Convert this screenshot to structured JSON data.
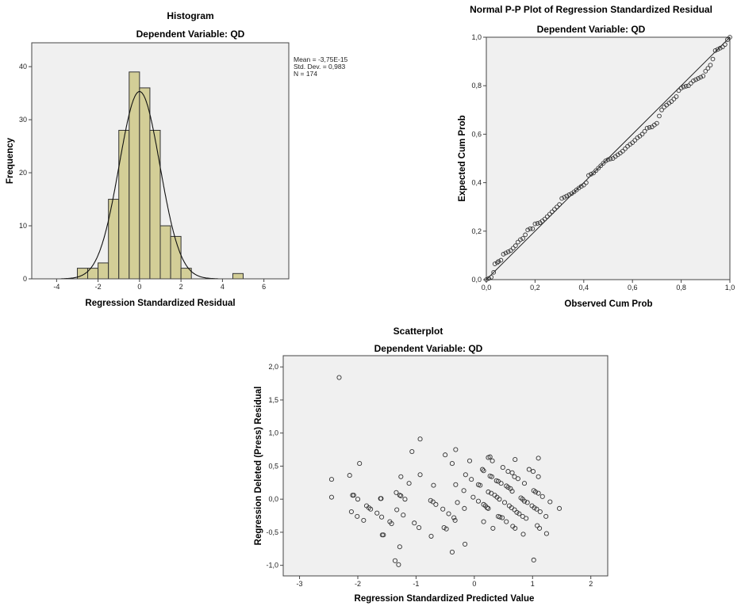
{
  "chart_data": [
    {
      "type": "bar",
      "title": "Histogram",
      "subtitle": "Dependent Variable: QD",
      "xlabel": "Regression Standardized Residual",
      "ylabel": "Frequency",
      "xlim": [
        -5.2,
        7.2
      ],
      "ylim": [
        0,
        44.5
      ],
      "xticks": [
        -4,
        -2,
        0,
        2,
        4,
        6
      ],
      "xtick_labels": [
        "-4",
        "-2",
        "0",
        "2",
        "4",
        "6"
      ],
      "yticks": [
        0,
        10,
        20,
        30,
        40
      ],
      "ytick_labels": [
        "0",
        "10",
        "20",
        "30",
        "40"
      ],
      "bin_width": 0.5,
      "bins": [
        {
          "start": -3.0,
          "count": 2
        },
        {
          "start": -2.5,
          "count": 2
        },
        {
          "start": -2.0,
          "count": 3
        },
        {
          "start": -1.5,
          "count": 15
        },
        {
          "start": -1.0,
          "count": 28
        },
        {
          "start": -0.5,
          "count": 39
        },
        {
          "start": 0.0,
          "count": 36
        },
        {
          "start": 0.5,
          "count": 28
        },
        {
          "start": 1.0,
          "count": 10
        },
        {
          "start": 1.5,
          "count": 8
        },
        {
          "start": 2.0,
          "count": 2
        },
        {
          "start": 4.5,
          "count": 1
        }
      ],
      "bar_color": "#d3ce97",
      "normal_curve": {
        "mean": 0,
        "sd": 0.983,
        "n": 174
      },
      "stats": [
        "Mean = -3,75E-15",
        "Std. Dev. = 0,983",
        "N = 174"
      ]
    },
    {
      "type": "scatter",
      "title": "Normal P-P Plot of Regression Standardized Residual",
      "subtitle": "Dependent Variable: QD",
      "xlabel": "Observed Cum Prob",
      "ylabel": "Expected Cum Prob",
      "xlim": [
        0,
        1
      ],
      "ylim": [
        0,
        1
      ],
      "xticks": [
        0,
        0.2,
        0.4,
        0.6,
        0.8,
        1.0
      ],
      "xtick_labels": [
        "0,0",
        "0,2",
        "0,4",
        "0,6",
        "0,8",
        "1,0"
      ],
      "yticks": [
        0,
        0.2,
        0.4,
        0.6,
        0.8,
        1.0
      ],
      "ytick_labels": [
        "0,0",
        "0,2",
        "0,4",
        "0,6",
        "0,8",
        "1,0"
      ],
      "reference_line": [
        [
          0,
          0
        ],
        [
          1,
          1
        ]
      ],
      "points": [
        [
          0,
          0
        ],
        [
          0.01,
          0.005
        ],
        [
          0.02,
          0.01
        ],
        [
          0.03,
          0.03
        ],
        [
          0.035,
          0.065
        ],
        [
          0.045,
          0.07
        ],
        [
          0.05,
          0.075
        ],
        [
          0.06,
          0.08
        ],
        [
          0.07,
          0.105
        ],
        [
          0.08,
          0.11
        ],
        [
          0.09,
          0.115
        ],
        [
          0.1,
          0.12
        ],
        [
          0.11,
          0.13
        ],
        [
          0.12,
          0.14
        ],
        [
          0.13,
          0.155
        ],
        [
          0.14,
          0.165
        ],
        [
          0.15,
          0.17
        ],
        [
          0.16,
          0.185
        ],
        [
          0.17,
          0.205
        ],
        [
          0.18,
          0.21
        ],
        [
          0.19,
          0.21
        ],
        [
          0.2,
          0.23
        ],
        [
          0.21,
          0.232
        ],
        [
          0.22,
          0.235
        ],
        [
          0.23,
          0.242
        ],
        [
          0.24,
          0.25
        ],
        [
          0.25,
          0.26
        ],
        [
          0.26,
          0.27
        ],
        [
          0.27,
          0.28
        ],
        [
          0.28,
          0.29
        ],
        [
          0.29,
          0.3
        ],
        [
          0.3,
          0.31
        ],
        [
          0.31,
          0.335
        ],
        [
          0.32,
          0.34
        ],
        [
          0.33,
          0.345
        ],
        [
          0.34,
          0.35
        ],
        [
          0.35,
          0.355
        ],
        [
          0.36,
          0.362
        ],
        [
          0.37,
          0.37
        ],
        [
          0.38,
          0.378
        ],
        [
          0.39,
          0.385
        ],
        [
          0.4,
          0.39
        ],
        [
          0.41,
          0.4
        ],
        [
          0.42,
          0.43
        ],
        [
          0.43,
          0.435
        ],
        [
          0.44,
          0.44
        ],
        [
          0.45,
          0.45
        ],
        [
          0.46,
          0.46
        ],
        [
          0.47,
          0.47
        ],
        [
          0.48,
          0.48
        ],
        [
          0.49,
          0.49
        ],
        [
          0.5,
          0.495
        ],
        [
          0.51,
          0.498
        ],
        [
          0.52,
          0.5
        ],
        [
          0.53,
          0.508
        ],
        [
          0.54,
          0.515
        ],
        [
          0.55,
          0.522
        ],
        [
          0.56,
          0.53
        ],
        [
          0.57,
          0.54
        ],
        [
          0.58,
          0.55
        ],
        [
          0.59,
          0.558
        ],
        [
          0.6,
          0.565
        ],
        [
          0.61,
          0.575
        ],
        [
          0.62,
          0.585
        ],
        [
          0.63,
          0.592
        ],
        [
          0.64,
          0.6
        ],
        [
          0.65,
          0.612
        ],
        [
          0.66,
          0.625
        ],
        [
          0.67,
          0.628
        ],
        [
          0.68,
          0.63
        ],
        [
          0.69,
          0.638
        ],
        [
          0.7,
          0.645
        ],
        [
          0.71,
          0.675
        ],
        [
          0.72,
          0.7
        ],
        [
          0.73,
          0.712
        ],
        [
          0.74,
          0.72
        ],
        [
          0.75,
          0.728
        ],
        [
          0.76,
          0.735
        ],
        [
          0.77,
          0.745
        ],
        [
          0.78,
          0.755
        ],
        [
          0.79,
          0.78
        ],
        [
          0.8,
          0.79
        ],
        [
          0.81,
          0.795
        ],
        [
          0.82,
          0.798
        ],
        [
          0.83,
          0.8
        ],
        [
          0.84,
          0.81
        ],
        [
          0.85,
          0.82
        ],
        [
          0.86,
          0.825
        ],
        [
          0.87,
          0.83
        ],
        [
          0.88,
          0.835
        ],
        [
          0.89,
          0.84
        ],
        [
          0.9,
          0.86
        ],
        [
          0.91,
          0.872
        ],
        [
          0.92,
          0.885
        ],
        [
          0.93,
          0.91
        ],
        [
          0.94,
          0.945
        ],
        [
          0.95,
          0.95
        ],
        [
          0.96,
          0.955
        ],
        [
          0.97,
          0.96
        ],
        [
          0.98,
          0.97
        ],
        [
          0.99,
          0.99
        ],
        [
          1.0,
          1.0
        ]
      ]
    },
    {
      "type": "scatter",
      "title": "Scatterplot",
      "subtitle": "Dependent Variable: QD",
      "xlabel": "Regression Standardized Predicted Value",
      "ylabel": "Regression Deleted (Press) Residual",
      "xlim": [
        -3.28,
        2.29
      ],
      "ylim": [
        -1.16,
        2.17
      ],
      "xticks": [
        -3,
        -2,
        -1,
        0,
        1,
        2
      ],
      "xtick_labels": [
        "-3",
        "-2",
        "-1",
        "0",
        "1",
        "2"
      ],
      "yticks": [
        -1.0,
        -0.5,
        0.0,
        0.5,
        1.0,
        1.5,
        2.0
      ],
      "ytick_labels": [
        "-1,0",
        "-0,5",
        "0,0",
        "0,5",
        "1,0",
        "1,5",
        "2,0"
      ],
      "points": [
        [
          -2.32,
          1.84
        ],
        [
          -2.45,
          0.3
        ],
        [
          -2.45,
          0.03
        ],
        [
          -2.14,
          0.36
        ],
        [
          -1.97,
          0.54
        ],
        [
          -2.09,
          0.06
        ],
        [
          -2.07,
          0.06
        ],
        [
          -2.0,
          0.0
        ],
        [
          -2.11,
          -0.19
        ],
        [
          -2.01,
          -0.26
        ],
        [
          -1.9,
          -0.32
        ],
        [
          -1.85,
          -0.1
        ],
        [
          -1.81,
          -0.13
        ],
        [
          -1.78,
          -0.15
        ],
        [
          -1.67,
          -0.21
        ],
        [
          -1.61,
          0.01
        ],
        [
          -1.6,
          0.01
        ],
        [
          -1.59,
          -0.27
        ],
        [
          -1.58,
          -0.54
        ],
        [
          -1.56,
          -0.54
        ],
        [
          -1.45,
          -0.34
        ],
        [
          -1.42,
          -0.37
        ],
        [
          -1.34,
          0.1
        ],
        [
          -1.28,
          0.06
        ],
        [
          -1.26,
          0.05
        ],
        [
          -1.33,
          -0.16
        ],
        [
          -1.26,
          0.34
        ],
        [
          -1.19,
          0.0
        ],
        [
          -1.22,
          -0.24
        ],
        [
          -1.28,
          -0.72
        ],
        [
          -1.36,
          -0.93
        ],
        [
          -1.3,
          -0.99
        ],
        [
          -1.12,
          0.24
        ],
        [
          -1.07,
          0.72
        ],
        [
          -0.93,
          0.91
        ],
        [
          -0.93,
          0.37
        ],
        [
          -1.03,
          -0.36
        ],
        [
          -0.95,
          -0.43
        ],
        [
          -0.75,
          -0.02
        ],
        [
          -0.71,
          -0.04
        ],
        [
          -0.66,
          -0.08
        ],
        [
          -0.7,
          0.21
        ],
        [
          -0.74,
          -0.56
        ],
        [
          -0.54,
          -0.15
        ],
        [
          -0.5,
          0.67
        ],
        [
          -0.38,
          0.54
        ],
        [
          -0.32,
          0.75
        ],
        [
          -0.32,
          0.22
        ],
        [
          -0.44,
          -0.22
        ],
        [
          -0.52,
          -0.43
        ],
        [
          -0.48,
          -0.45
        ],
        [
          -0.35,
          -0.28
        ],
        [
          -0.33,
          -0.32
        ],
        [
          -0.29,
          -0.05
        ],
        [
          -0.38,
          -0.8
        ],
        [
          -0.15,
          0.37
        ],
        [
          -0.18,
          0.13
        ],
        [
          -0.17,
          -0.14
        ],
        [
          -0.08,
          0.58
        ],
        [
          -0.05,
          0.3
        ],
        [
          -0.16,
          -0.68
        ],
        [
          -0.02,
          0.03
        ],
        [
          0.07,
          0.22
        ],
        [
          0.1,
          0.21
        ],
        [
          0.07,
          -0.03
        ],
        [
          0.14,
          0.45
        ],
        [
          0.16,
          0.43
        ],
        [
          0.16,
          -0.08
        ],
        [
          0.19,
          -0.1
        ],
        [
          0.22,
          -0.13
        ],
        [
          0.24,
          -0.14
        ],
        [
          0.16,
          -0.34
        ],
        [
          0.24,
          0.63
        ],
        [
          0.27,
          0.64
        ],
        [
          0.31,
          0.58
        ],
        [
          0.27,
          0.35
        ],
        [
          0.3,
          0.34
        ],
        [
          0.24,
          0.11
        ],
        [
          0.29,
          0.09
        ],
        [
          0.35,
          0.06
        ],
        [
          0.39,
          0.03
        ],
        [
          0.43,
          0.0
        ],
        [
          0.32,
          -0.44
        ],
        [
          0.38,
          0.28
        ],
        [
          0.41,
          0.27
        ],
        [
          0.46,
          0.24
        ],
        [
          0.41,
          -0.26
        ],
        [
          0.44,
          -0.27
        ],
        [
          0.48,
          -0.28
        ],
        [
          0.49,
          0.48
        ],
        [
          0.52,
          -0.05
        ],
        [
          0.55,
          -0.34
        ],
        [
          0.55,
          0.2
        ],
        [
          0.58,
          0.18
        ],
        [
          0.62,
          0.16
        ],
        [
          0.65,
          0.12
        ],
        [
          0.58,
          0.42
        ],
        [
          0.6,
          -0.1
        ],
        [
          0.64,
          -0.13
        ],
        [
          0.69,
          -0.16
        ],
        [
          0.73,
          -0.2
        ],
        [
          0.77,
          -0.22
        ],
        [
          0.65,
          0.4
        ],
        [
          0.69,
          0.34
        ],
        [
          0.75,
          0.31
        ],
        [
          0.7,
          0.6
        ],
        [
          0.66,
          -0.41
        ],
        [
          0.7,
          -0.44
        ],
        [
          0.8,
          0.02
        ],
        [
          0.83,
          0.0
        ],
        [
          0.86,
          -0.03
        ],
        [
          0.91,
          -0.05
        ],
        [
          0.83,
          -0.26
        ],
        [
          0.89,
          -0.29
        ],
        [
          0.86,
          0.24
        ],
        [
          0.84,
          -0.53
        ],
        [
          0.94,
          0.45
        ],
        [
          1.01,
          0.42
        ],
        [
          1.02,
          0.13
        ],
        [
          1.05,
          0.11
        ],
        [
          1.1,
          0.09
        ],
        [
          1.17,
          0.04
        ],
        [
          0.99,
          -0.1
        ],
        [
          1.03,
          -0.13
        ],
        [
          1.07,
          -0.15
        ],
        [
          1.13,
          -0.19
        ],
        [
          1.23,
          -0.26
        ],
        [
          1.08,
          -0.4
        ],
        [
          1.12,
          -0.44
        ],
        [
          1.1,
          0.34
        ],
        [
          1.1,
          0.62
        ],
        [
          1.3,
          -0.04
        ],
        [
          1.46,
          -0.14
        ],
        [
          1.24,
          -0.52
        ],
        [
          1.02,
          -0.92
        ]
      ]
    }
  ]
}
